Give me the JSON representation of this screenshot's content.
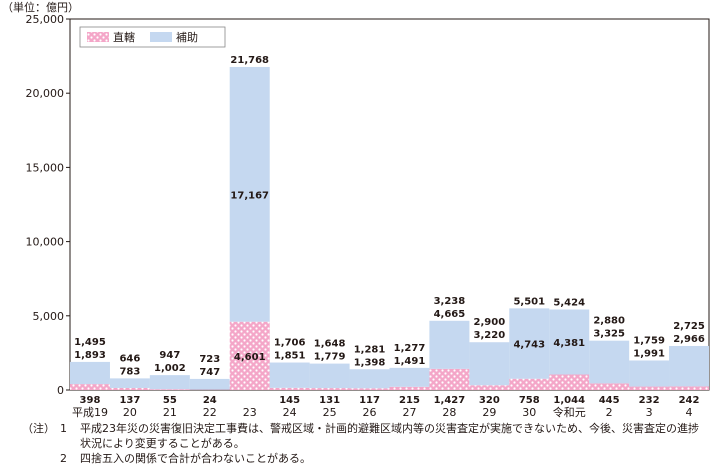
{
  "chart_data": {
    "type": "bar",
    "stacked": true,
    "unit_label": "（単位：億円）",
    "ylim": [
      0,
      25000
    ],
    "yticks": [
      "0",
      "5,000",
      "10,000",
      "15,000",
      "20,000",
      "25,000"
    ],
    "ytick_values": [
      0,
      5000,
      10000,
      15000,
      20000,
      25000
    ],
    "categories": [
      "平成19",
      "20",
      "21",
      "22",
      "23",
      "24",
      "25",
      "26",
      "27",
      "28",
      "29",
      "30",
      "令和元",
      "2",
      "3",
      "4"
    ],
    "legend": {
      "position": "top-left",
      "items": [
        "直轄",
        "補助"
      ]
    },
    "series": [
      {
        "name": "直轄",
        "color": "#f4a6c8",
        "values": [
          398,
          137,
          55,
          24,
          4601,
          145,
          131,
          117,
          215,
          1427,
          320,
          758,
          1044,
          445,
          232,
          242
        ],
        "labels": [
          "398",
          "137",
          "55",
          "24",
          "4,601",
          "145",
          "131",
          "117",
          "215",
          "1,427",
          "320",
          "758",
          "1,044",
          "445",
          "232",
          "242"
        ]
      },
      {
        "name": "補助",
        "color": "#c5d8f0",
        "values": [
          1495,
          646,
          947,
          723,
          17167,
          1706,
          1648,
          1281,
          1277,
          3238,
          2900,
          4743,
          4381,
          2880,
          1759,
          2725
        ],
        "labels": [
          "1,495",
          "646",
          "947",
          "723",
          "17,167",
          "1,706",
          "1,648",
          "1,281",
          "1,277",
          "3,238",
          "2,900",
          "4,743",
          "4,381",
          "2,880",
          "1,759",
          "2,725"
        ]
      }
    ],
    "totals": [
      1893,
      783,
      1002,
      747,
      21768,
      1851,
      1779,
      1398,
      1491,
      4665,
      3220,
      5501,
      5424,
      3325,
      1991,
      2966
    ],
    "total_labels": [
      "1,893",
      "783",
      "1,002",
      "747",
      "21,768",
      "1,851",
      "1,779",
      "1,398",
      "1,491",
      "4,665",
      "3,220",
      "5,501",
      "5,424",
      "3,325",
      "1,991",
      "2,966"
    ]
  },
  "notes": {
    "mark": "（注）",
    "items": [
      {
        "num": "1",
        "text": "平成23年災の災害復旧決定工事費は、警戒区域・計画的避難区域内等の災害査定が実施できないため、今後、災害査定の進捗状況により変更することがある。"
      },
      {
        "num": "2",
        "text": "四捨五入の関係で合計が合わないことがある。"
      }
    ]
  }
}
